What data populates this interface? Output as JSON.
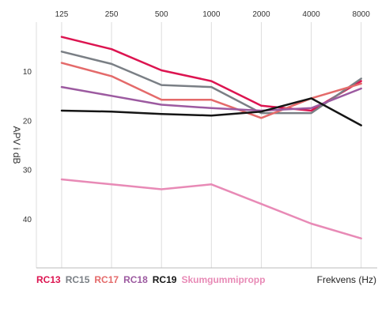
{
  "chart_data": {
    "type": "line",
    "x": [
      125,
      250,
      500,
      1000,
      2000,
      4000,
      8000
    ],
    "x_tick_labels": [
      "125",
      "250",
      "500",
      "1000",
      "2000",
      "4000",
      "8000"
    ],
    "x_scale": "log",
    "xlim": [
      88,
      10000
    ],
    "xlabel": "Frekvens (Hz)",
    "ylabel": "APV i dB",
    "ylim": [
      0,
      50
    ],
    "y_inverted": true,
    "y_ticks": [
      10,
      20,
      30,
      40
    ],
    "grid": true,
    "legend_position": "bottom-left",
    "series": [
      {
        "name": "RC13",
        "color": "#dc1450",
        "values": [
          3,
          5.5,
          9.8,
          12,
          17,
          18,
          12
        ]
      },
      {
        "name": "RC15",
        "color": "#7a7f85",
        "values": [
          6,
          8.5,
          12.8,
          13.2,
          18.5,
          18.5,
          11.5
        ]
      },
      {
        "name": "RC17",
        "color": "#e46a6a",
        "values": [
          8.3,
          11,
          15.8,
          15.8,
          19.5,
          15.5,
          12.5
        ]
      },
      {
        "name": "RC18",
        "color": "#9c5aa0",
        "values": [
          13.2,
          15,
          16.8,
          17.5,
          18,
          17.5,
          13.5
        ]
      },
      {
        "name": "RC19",
        "color": "#151515",
        "values": [
          18,
          18.2,
          18.7,
          19,
          18.2,
          15.5,
          21
        ]
      },
      {
        "name": "Skumgummipropp",
        "color": "#e88ab6",
        "values": [
          32,
          33,
          34,
          33,
          37,
          41,
          44
        ]
      }
    ]
  }
}
